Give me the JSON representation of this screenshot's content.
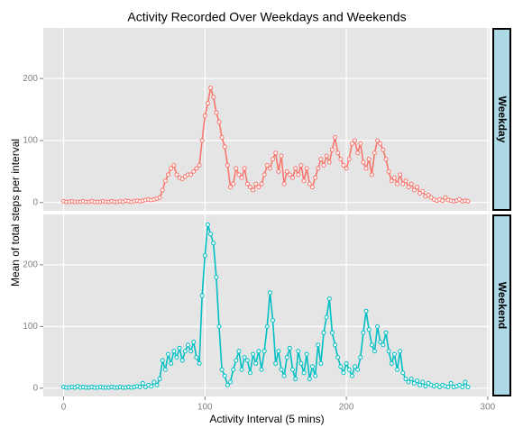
{
  "chart_data": {
    "type": "line",
    "title": "Activity Recorded Over Weekdays and Weekends",
    "xlabel": "Activity Interval (5 mins)",
    "ylabel": "Mean of total steps per interval",
    "xlim": [
      -14.35,
      301.35
    ],
    "ylim": [
      -13.4,
      281.6
    ],
    "xticks": [
      0,
      100,
      200,
      300
    ],
    "yticks": [
      0,
      100,
      200
    ],
    "grid": true,
    "x": [
      0,
      2,
      4,
      6,
      8,
      10,
      12,
      14,
      16,
      18,
      20,
      22,
      24,
      26,
      28,
      30,
      32,
      34,
      36,
      38,
      40,
      42,
      44,
      46,
      48,
      50,
      52,
      54,
      56,
      58,
      60,
      62,
      64,
      66,
      68,
      70,
      72,
      74,
      76,
      78,
      80,
      82,
      84,
      86,
      88,
      90,
      92,
      94,
      96,
      98,
      100,
      102,
      104,
      106,
      108,
      110,
      112,
      114,
      116,
      118,
      120,
      122,
      124,
      126,
      128,
      130,
      132,
      134,
      136,
      138,
      140,
      142,
      144,
      146,
      148,
      150,
      152,
      154,
      156,
      158,
      160,
      162,
      164,
      166,
      168,
      170,
      172,
      174,
      176,
      178,
      180,
      182,
      184,
      186,
      188,
      190,
      192,
      194,
      196,
      198,
      200,
      202,
      204,
      206,
      208,
      210,
      212,
      214,
      216,
      218,
      220,
      222,
      224,
      226,
      228,
      230,
      232,
      234,
      236,
      238,
      240,
      242,
      244,
      246,
      248,
      250,
      252,
      254,
      256,
      258,
      260,
      262,
      264,
      266,
      268,
      270,
      272,
      274,
      276,
      278,
      280,
      282,
      284,
      286
    ],
    "series": [
      {
        "name": "Weekday",
        "color": "#F8766D",
        "values": [
          2,
          1,
          1,
          2,
          1,
          1,
          1,
          2,
          1,
          1,
          2,
          1,
          1,
          1,
          2,
          1,
          1,
          2,
          1,
          1,
          2,
          1,
          3,
          2,
          1,
          2,
          3,
          2,
          3,
          4,
          5,
          4,
          5,
          6,
          8,
          20,
          35,
          45,
          55,
          60,
          45,
          40,
          38,
          42,
          45,
          45,
          50,
          55,
          60,
          100,
          140,
          160,
          185,
          170,
          145,
          130,
          105,
          90,
          60,
          25,
          30,
          55,
          45,
          40,
          55,
          30,
          25,
          20,
          30,
          25,
          30,
          45,
          60,
          55,
          70,
          80,
          50,
          75,
          30,
          50,
          45,
          40,
          55,
          45,
          60,
          35,
          55,
          30,
          25,
          40,
          55,
          70,
          60,
          75,
          65,
          85,
          105,
          80,
          70,
          60,
          55,
          70,
          95,
          100,
          80,
          95,
          65,
          55,
          70,
          45,
          80,
          100,
          95,
          85,
          70,
          50,
          35,
          40,
          30,
          45,
          30,
          35,
          25,
          30,
          20,
          25,
          15,
          18,
          10,
          12,
          8,
          5,
          3,
          5,
          3,
          8,
          4,
          3,
          2,
          3,
          5,
          2,
          3,
          2
        ]
      },
      {
        "name": "Weekend",
        "color": "#00BFC4",
        "values": [
          2,
          1,
          1,
          2,
          1,
          3,
          1,
          2,
          1,
          1,
          2,
          1,
          1,
          2,
          1,
          1,
          1,
          2,
          1,
          1,
          2,
          1,
          1,
          2,
          1,
          2,
          3,
          2,
          8,
          2,
          5,
          3,
          10,
          5,
          15,
          45,
          30,
          55,
          40,
          60,
          50,
          65,
          45,
          60,
          70,
          60,
          75,
          50,
          40,
          150,
          215,
          265,
          250,
          235,
          180,
          100,
          30,
          20,
          5,
          10,
          30,
          45,
          60,
          30,
          50,
          45,
          25,
          55,
          40,
          60,
          30,
          60,
          100,
          155,
          110,
          40,
          60,
          30,
          20,
          50,
          65,
          30,
          15,
          60,
          40,
          25,
          55,
          15,
          35,
          20,
          70,
          40,
          90,
          115,
          145,
          90,
          70,
          50,
          35,
          25,
          40,
          30,
          20,
          35,
          30,
          50,
          90,
          125,
          95,
          70,
          60,
          100,
          75,
          70,
          90,
          60,
          40,
          55,
          30,
          60,
          25,
          15,
          10,
          15,
          8,
          12,
          5,
          10,
          3,
          8,
          5,
          3,
          5,
          2,
          5,
          3,
          2,
          8,
          2,
          3,
          5,
          2,
          10,
          2
        ]
      }
    ]
  }
}
